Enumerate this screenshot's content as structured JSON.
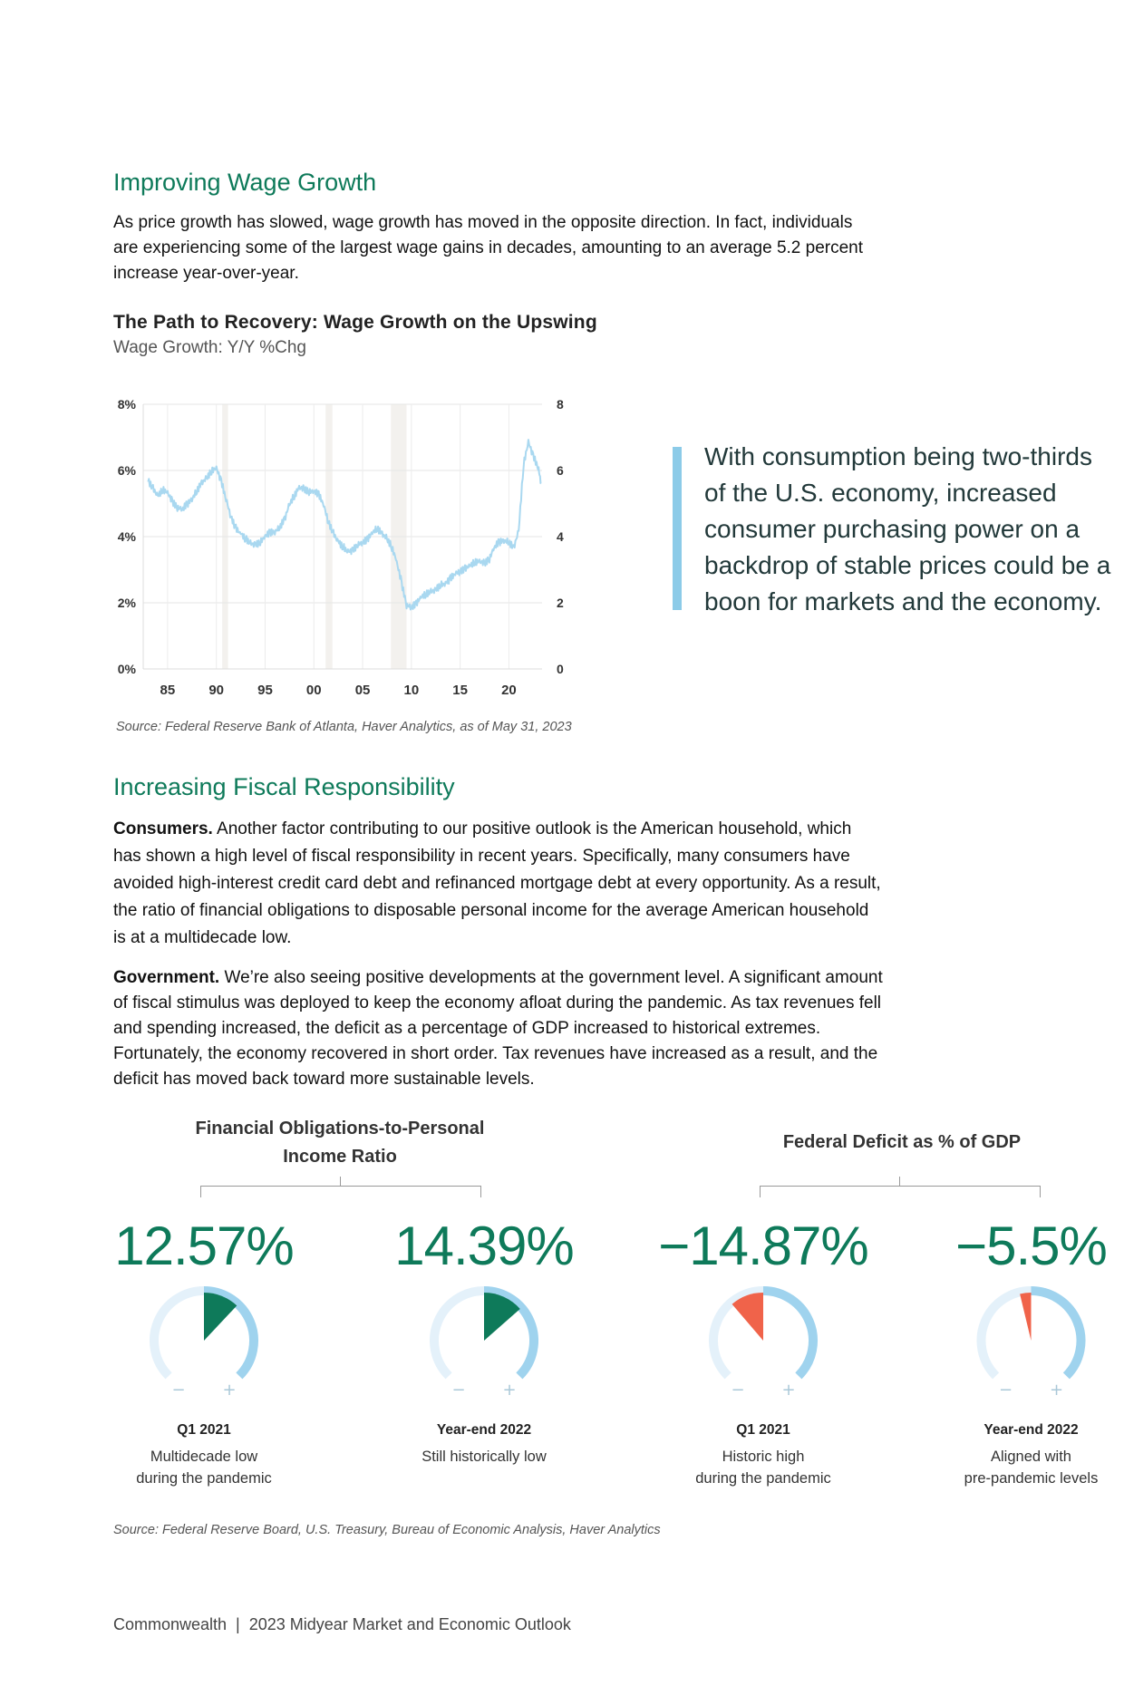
{
  "section1": {
    "heading": "Improving Wage Growth",
    "paragraph": "As price growth has slowed, wage growth has moved in the opposite direction. In fact, individuals are experiencing some of the largest wage gains in decades, amounting to an average 5.2 percent increase year-over-year."
  },
  "chart_data": {
    "type": "line",
    "title": "The Path to Recovery: Wage Growth on the Upswing",
    "subtitle": "Wage Growth: Y/Y %Chg",
    "x_tick_labels": [
      "85",
      "90",
      "95",
      "00",
      "05",
      "10",
      "15",
      "20"
    ],
    "x_ticks": [
      1985,
      1990,
      1995,
      2000,
      2005,
      2010,
      2015,
      2020
    ],
    "xlim": [
      1982.5,
      2023.4
    ],
    "y_left_ticks": [
      "0%",
      "2%",
      "4%",
      "6%",
      "8%"
    ],
    "y_right_ticks": [
      "0",
      "2",
      "4",
      "6",
      "8"
    ],
    "ylim": [
      0,
      8
    ],
    "grid": true,
    "recession_shading": [
      [
        1990.6,
        1991.2
      ],
      [
        2001.2,
        2001.9
      ],
      [
        2007.9,
        2009.5
      ]
    ],
    "series": [
      {
        "color": "#a9d8f0",
        "x": [
          1983.0,
          1983.5,
          1984.0,
          1984.5,
          1985.0,
          1985.5,
          1986.0,
          1986.5,
          1987.0,
          1987.5,
          1988.0,
          1988.5,
          1989.0,
          1989.5,
          1990.0,
          1990.5,
          1991.0,
          1991.5,
          1992.0,
          1992.5,
          1993.0,
          1993.5,
          1994.0,
          1994.5,
          1995.0,
          1995.5,
          1996.0,
          1996.5,
          1997.0,
          1997.5,
          1998.0,
          1998.5,
          1999.0,
          1999.5,
          2000.0,
          2000.5,
          2001.0,
          2001.5,
          2002.0,
          2002.5,
          2003.0,
          2003.5,
          2004.0,
          2004.5,
          2005.0,
          2005.5,
          2006.0,
          2006.5,
          2007.0,
          2007.5,
          2008.0,
          2008.5,
          2009.0,
          2009.5,
          2010.0,
          2010.5,
          2011.0,
          2011.5,
          2012.0,
          2012.5,
          2013.0,
          2013.5,
          2014.0,
          2014.5,
          2015.0,
          2015.5,
          2016.0,
          2016.5,
          2017.0,
          2017.5,
          2018.0,
          2018.5,
          2019.0,
          2019.5,
          2020.0,
          2020.5,
          2021.0,
          2021.5,
          2022.0,
          2022.5,
          2023.0,
          2023.3
        ],
        "y": [
          5.8,
          5.6,
          5.4,
          5.6,
          5.5,
          5.2,
          5.0,
          4.9,
          5.0,
          5.1,
          5.3,
          5.5,
          5.6,
          5.8,
          5.9,
          5.5,
          5.0,
          4.5,
          4.2,
          4.1,
          4.0,
          3.9,
          3.9,
          4.0,
          4.2,
          4.3,
          4.3,
          4.4,
          4.6,
          5.0,
          5.2,
          5.4,
          5.3,
          5.2,
          5.2,
          5.1,
          4.8,
          4.3,
          4.0,
          3.8,
          3.7,
          3.6,
          3.7,
          3.9,
          4.0,
          4.1,
          4.3,
          4.4,
          4.2,
          4.0,
          3.7,
          3.2,
          2.5,
          1.8,
          1.7,
          1.8,
          2.0,
          2.1,
          2.2,
          2.3,
          2.5,
          2.6,
          2.8,
          3.0,
          3.1,
          3.2,
          3.3,
          3.4,
          3.4,
          3.3,
          3.4,
          3.7,
          3.8,
          3.8,
          3.7,
          3.5,
          4.0,
          6.0,
          6.7,
          6.3,
          6.0,
          5.6
        ]
      }
    ]
  },
  "chart_source": "Source: Federal Reserve Bank of Atlanta, Haver Analytics, as of May 31, 2023",
  "pull_quote": {
    "lines": [
      "With consumption being two-thirds",
      "of the U.S. economy, increased",
      "consumer purchasing power on a",
      "backdrop of stable prices could be a",
      "boon for markets and the economy."
    ]
  },
  "section2": {
    "heading": "Increasing Fiscal Responsibility",
    "p1_lead": "Consumers.",
    "p1_text": " Another factor contributing to our positive outlook is the American household, which has shown a high level of fiscal responsibility in recent years. Specifically, many consumers have avoided high-interest credit card debt and refinanced mortgage debt at every opportunity. As a result, the ratio of financial obligations to disposable personal income for the average American household is at a multidecade low.",
    "p2_lead": "Government.",
    "p2_text": " We’re also seeing positive developments at the government level. A significant amount of fiscal stimulus was deployed to keep the economy afloat during the pandemic. As tax revenues fell and spending increased, the deficit as a percentage of GDP increased to historical extremes. Fortunately, the economy recovered in short order. Tax revenues have increased as a result, and the deficit has moved back toward more sustainable levels."
  },
  "gauges": {
    "group1_title_l1": "Financial Obligations-to-Personal",
    "group1_title_l2": "Income Ratio",
    "group2_title": "Federal Deficit as % of GDP",
    "minus_symbol": "−",
    "plus_symbol": "+",
    "items": [
      {
        "value": "12.57%",
        "date": "Q1 2021",
        "desc1": "Multidecade low",
        "desc2": "during the pandemic",
        "fill_color": "#0e7a5a",
        "fill_fraction": 0.16,
        "direction": "cw"
      },
      {
        "value": "14.39%",
        "date": "Year-end 2022",
        "desc1": "Still historically low",
        "desc2": "",
        "fill_color": "#0e7a5a",
        "fill_fraction": 0.18,
        "direction": "cw"
      },
      {
        "value": "−14.87%",
        "date": "Q1 2021",
        "desc1": "Historic high",
        "desc2": "during the pandemic",
        "fill_color": "#f0634a",
        "fill_fraction": 0.15,
        "direction": "ccw"
      },
      {
        "value": "−5.5%",
        "date": "Year-end 2022",
        "desc1": "Aligned with",
        "desc2": "pre-pandemic levels",
        "fill_color": "#f0634a",
        "fill_fraction": 0.05,
        "direction": "ccw"
      }
    ]
  },
  "gauge_source": "Source: Federal Reserve Board, U.S. Treasury, Bureau of Economic Analysis, Haver Analytics",
  "footer": "Commonwealth  |  2023 Midyear Market and Economic Outlook"
}
